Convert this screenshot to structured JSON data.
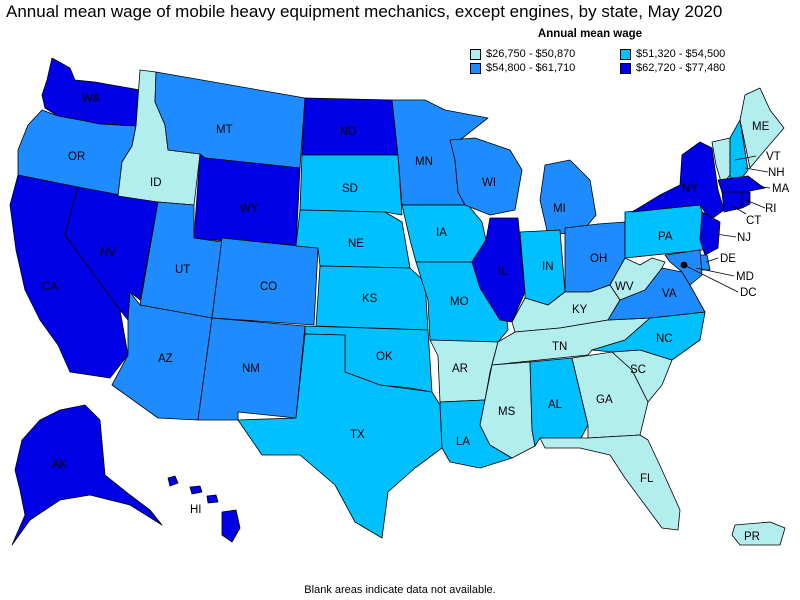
{
  "title": "Annual mean wage of mobile heavy equipment mechanics, except engines, by state, May 2020",
  "legend": {
    "title": "Annual mean wage",
    "bins": [
      {
        "label": "$26,750 - $50,870",
        "color": "#b3eeee"
      },
      {
        "label": "$51,320 - $54,500",
        "color": "#00c0ff"
      },
      {
        "label": "$54,800 - $61,710",
        "color": "#1e8cff"
      },
      {
        "label": "$62,720 - $77,480",
        "color": "#0000e6"
      }
    ]
  },
  "footnote": "Blank areas indicate data not available.",
  "states": {
    "WA": {
      "bin": 3
    },
    "OR": {
      "bin": 2
    },
    "CA": {
      "bin": 3
    },
    "NV": {
      "bin": 3
    },
    "ID": {
      "bin": 0
    },
    "MT": {
      "bin": 2
    },
    "WY": {
      "bin": 3
    },
    "UT": {
      "bin": 2
    },
    "AZ": {
      "bin": 2
    },
    "CO": {
      "bin": 2
    },
    "NM": {
      "bin": 2
    },
    "ND": {
      "bin": 3
    },
    "SD": {
      "bin": 1
    },
    "NE": {
      "bin": 1
    },
    "KS": {
      "bin": 1
    },
    "OK": {
      "bin": 1
    },
    "TX": {
      "bin": 1
    },
    "MN": {
      "bin": 2
    },
    "IA": {
      "bin": 1
    },
    "MO": {
      "bin": 1
    },
    "AR": {
      "bin": 0
    },
    "LA": {
      "bin": 1
    },
    "WI": {
      "bin": 2
    },
    "IL": {
      "bin": 3
    },
    "MI": {
      "bin": 2
    },
    "IN": {
      "bin": 1
    },
    "OH": {
      "bin": 2
    },
    "KY": {
      "bin": 0
    },
    "TN": {
      "bin": 0
    },
    "MS": {
      "bin": 0
    },
    "AL": {
      "bin": 1
    },
    "GA": {
      "bin": 0
    },
    "FL": {
      "bin": 0
    },
    "SC": {
      "bin": 0
    },
    "NC": {
      "bin": 1
    },
    "VA": {
      "bin": 2
    },
    "WV": {
      "bin": 0
    },
    "PA": {
      "bin": 1
    },
    "NY": {
      "bin": 3
    },
    "VT": {
      "bin": 0
    },
    "NH": {
      "bin": 1
    },
    "ME": {
      "bin": 0
    },
    "MA": {
      "bin": 3
    },
    "RI": {
      "bin": 3
    },
    "CT": {
      "bin": 3
    },
    "NJ": {
      "bin": 3
    },
    "DE": {
      "bin": 2
    },
    "MD": {
      "bin": 2
    },
    "DC": {
      "bin": 3
    },
    "AK": {
      "bin": 3
    },
    "HI": {
      "bin": 3
    },
    "PR": {
      "bin": 0
    }
  },
  "labels": {
    "WA": "WA",
    "OR": "OR",
    "CA": "CA",
    "NV": "NV",
    "ID": "ID",
    "MT": "MT",
    "WY": "WY",
    "UT": "UT",
    "AZ": "AZ",
    "CO": "CO",
    "NM": "NM",
    "ND": "ND",
    "SD": "SD",
    "NE": "NE",
    "KS": "KS",
    "OK": "OK",
    "TX": "TX",
    "MN": "MN",
    "IA": "IA",
    "MO": "MO",
    "AR": "AR",
    "LA": "LA",
    "WI": "WI",
    "IL": "IL",
    "MI": "MI",
    "IN": "IN",
    "OH": "OH",
    "KY": "KY",
    "TN": "TN",
    "MS": "MS",
    "AL": "AL",
    "GA": "GA",
    "FL": "FL",
    "SC": "SC",
    "NC": "NC",
    "VA": "VA",
    "WV": "WV",
    "PA": "PA",
    "NY": "NY",
    "VT": "VT",
    "NH": "NH",
    "ME": "ME",
    "MA": "MA",
    "RI": "RI",
    "CT": "CT",
    "NJ": "NJ",
    "DE": "DE",
    "MD": "MD",
    "DC": "DC",
    "AK": "AK",
    "HI": "HI",
    "PR": "PR"
  }
}
